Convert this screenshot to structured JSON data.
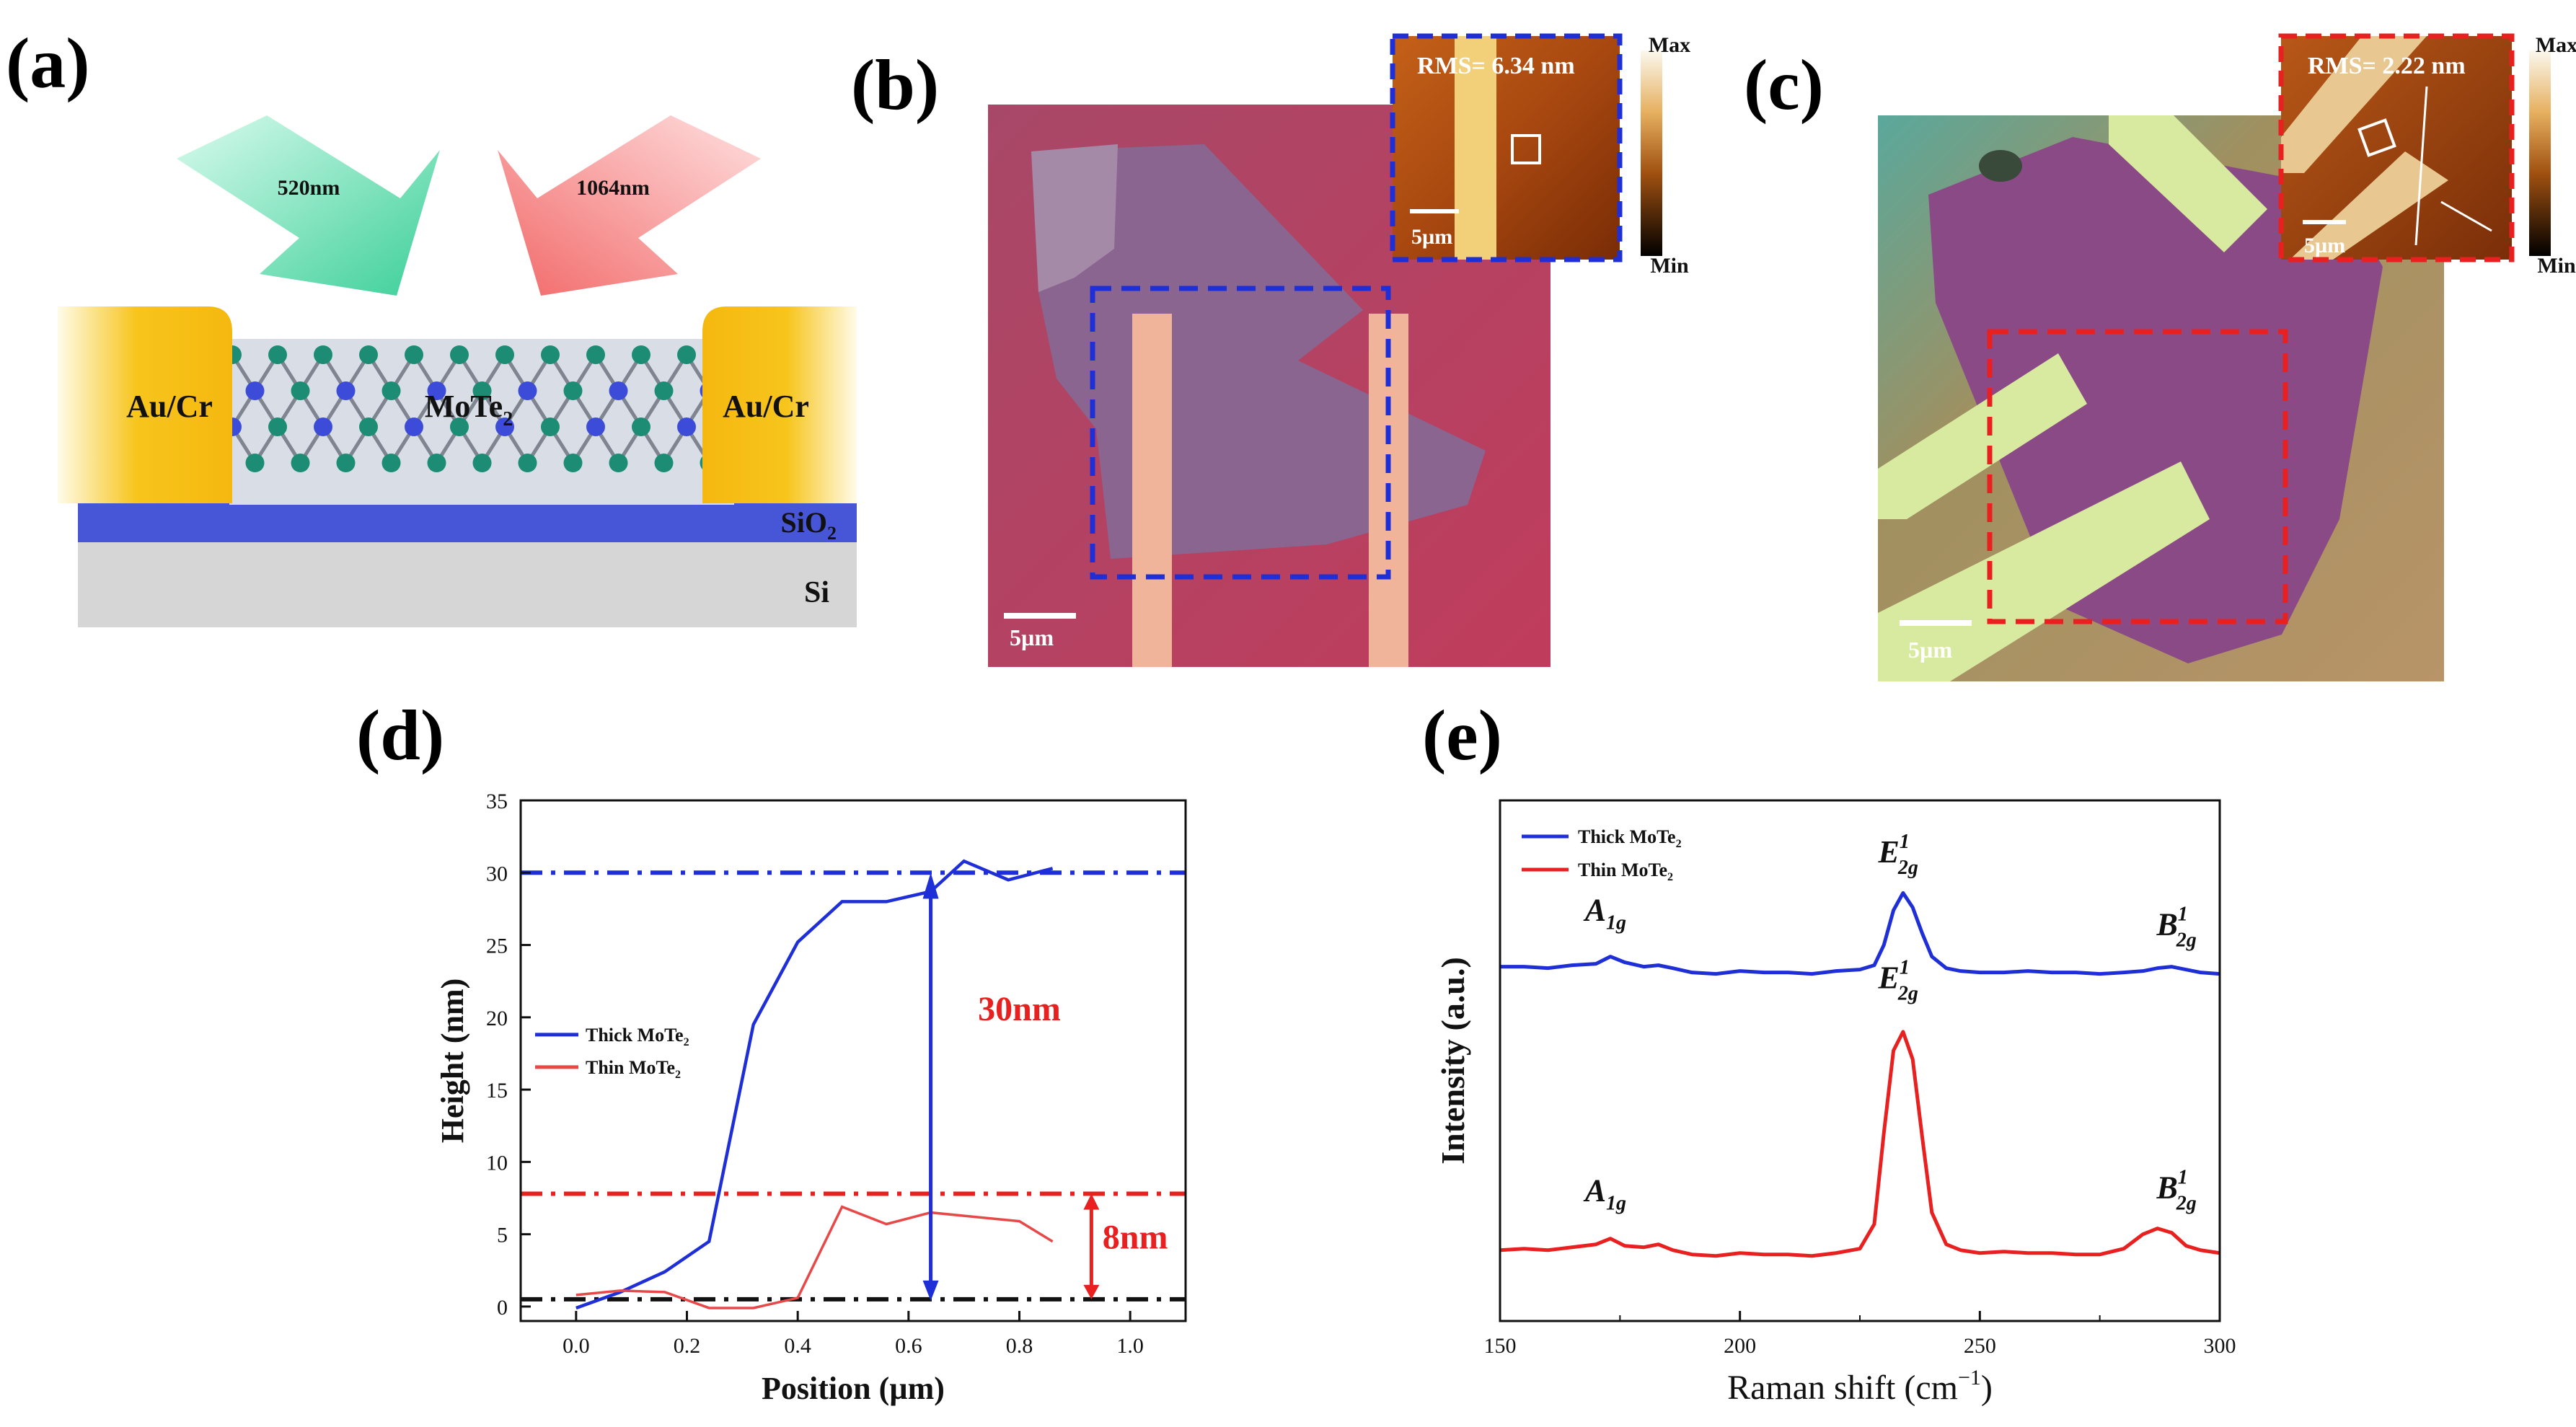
{
  "figure": {
    "labels": {
      "a": "(a)",
      "b": "(b)",
      "c": "(c)",
      "d": "(d)",
      "e": "(e)"
    }
  },
  "panel_a": {
    "arrow_green": "520nm",
    "arrow_red": "1064nm",
    "contact_left": "Au/Cr",
    "contact_right": "Au/Cr",
    "material": "MoTe",
    "material_sub": "2",
    "oxide": "SiO",
    "oxide_sub": "2",
    "substrate": "Si",
    "colors": {
      "gold": "#f5bc14",
      "silicon_oxide": "#4a5bd8",
      "silicon": "#d4d4d4",
      "te_atom": "#1c8c74",
      "mo_atom": "#3c4cd8",
      "arrow_green": "#4fd6a8",
      "arrow_red": "#f47878"
    }
  },
  "panel_b": {
    "rms": "RMS= 6.34 nm",
    "inset_scale": "5µm",
    "scale": "5µm",
    "colorbar_max": "Max",
    "colorbar_min": "Min",
    "colors": {
      "box": "#1f2fd8"
    }
  },
  "panel_c": {
    "rms": "RMS= 2.22 nm",
    "inset_scale": "5µm",
    "scale": "5µm",
    "colorbar_max": "Max",
    "colorbar_min": "Min",
    "colors": {
      "box": "#e82020"
    }
  },
  "chart_data": [
    {
      "id": "d",
      "type": "line",
      "xlabel": "Position (µm)",
      "ylabel": "Height (nm)",
      "xlim": [
        -0.1,
        1.1
      ],
      "ylim": [
        -1,
        35
      ],
      "xticks": [
        "0.0",
        "0.2",
        "0.4",
        "0.6",
        "0.8",
        "1.0"
      ],
      "yticks": [
        "0",
        "5",
        "10",
        "15",
        "20",
        "25",
        "30",
        "35"
      ],
      "legend": [
        "Thick MoTe",
        "Thin MoTe"
      ],
      "legend_sub": "2",
      "series": [
        {
          "name": "Thick MoTe2",
          "color": "#1f2fd8",
          "x": [
            0.0,
            0.08,
            0.16,
            0.24,
            0.32,
            0.4,
            0.48,
            0.56,
            0.64,
            0.7,
            0.78,
            0.86
          ],
          "y": [
            -0.1,
            1.0,
            2.4,
            4.5,
            19.5,
            25.2,
            28.0,
            28.0,
            28.7,
            30.8,
            29.5,
            30.3
          ]
        },
        {
          "name": "Thin MoTe2",
          "color": "#e84848",
          "x": [
            0.0,
            0.08,
            0.16,
            0.24,
            0.32,
            0.4,
            0.48,
            0.56,
            0.64,
            0.72,
            0.8,
            0.86
          ],
          "y": [
            0.8,
            1.1,
            1.0,
            -0.1,
            -0.1,
            0.6,
            6.9,
            5.7,
            6.5,
            6.2,
            5.9,
            4.5
          ]
        }
      ],
      "reference_lines": [
        {
          "y": 30,
          "color": "#1f2fd8"
        },
        {
          "y": 7.8,
          "color": "#e82020"
        },
        {
          "y": 0.5,
          "color": "#111111"
        }
      ],
      "annotations": [
        {
          "text": "30nm",
          "color": "#e82020"
        },
        {
          "text": "8nm",
          "color": "#e82020"
        }
      ]
    },
    {
      "id": "e",
      "type": "line",
      "xlabel": "Raman shift (cm",
      "xlabel_sup": "−1",
      "ylabel": "Intensity (a.u.)",
      "xlim": [
        150,
        300
      ],
      "xticks": [
        "150",
        "200",
        "250",
        "300"
      ],
      "legend": [
        "Thick MoTe",
        "Thin MoTe"
      ],
      "legend_sub": "2",
      "series": [
        {
          "name": "Thick MoTe2",
          "color": "#1f2fd8",
          "x": [
            150,
            155,
            160,
            165,
            170,
            173,
            176,
            180,
            183,
            186,
            190,
            195,
            200,
            205,
            210,
            215,
            220,
            225,
            228,
            230,
            232,
            234,
            236,
            238,
            240,
            243,
            246,
            250,
            255,
            260,
            265,
            270,
            275,
            280,
            284,
            287,
            290,
            293,
            296,
            300
          ],
          "y": [
            0.05,
            0.05,
            0.04,
            0.06,
            0.07,
            0.12,
            0.08,
            0.05,
            0.06,
            0.04,
            0.01,
            0.0,
            0.02,
            0.01,
            0.01,
            0.0,
            0.02,
            0.03,
            0.06,
            0.2,
            0.44,
            0.56,
            0.46,
            0.28,
            0.12,
            0.04,
            0.02,
            0.01,
            0.01,
            0.02,
            0.01,
            0.01,
            0.0,
            0.01,
            0.02,
            0.04,
            0.05,
            0.03,
            0.01,
            0.0
          ]
        },
        {
          "name": "Thin MoTe2",
          "color": "#e82020",
          "x": [
            150,
            155,
            160,
            165,
            170,
            173,
            176,
            180,
            183,
            186,
            190,
            195,
            200,
            205,
            210,
            215,
            220,
            225,
            228,
            230,
            232,
            234,
            236,
            238,
            240,
            243,
            246,
            250,
            255,
            260,
            265,
            270,
            275,
            280,
            284,
            287,
            290,
            293,
            296,
            300
          ],
          "y": [
            0.04,
            0.05,
            0.04,
            0.06,
            0.08,
            0.12,
            0.07,
            0.06,
            0.08,
            0.04,
            0.01,
            0.0,
            0.02,
            0.01,
            0.01,
            0.0,
            0.02,
            0.05,
            0.22,
            0.85,
            1.42,
            1.55,
            1.36,
            0.82,
            0.3,
            0.08,
            0.04,
            0.02,
            0.03,
            0.02,
            0.02,
            0.01,
            0.01,
            0.05,
            0.15,
            0.19,
            0.16,
            0.07,
            0.04,
            0.02
          ]
        }
      ],
      "offsets": [
        1.95,
        0.0
      ],
      "peak_labels": [
        {
          "base": "A",
          "sub": "1g",
          "sup": ""
        },
        {
          "base": "E",
          "sub": "2g",
          "sup": "1"
        },
        {
          "base": "B",
          "sub": "2g",
          "sup": "1"
        },
        {
          "base": "A",
          "sub": "1g",
          "sup": ""
        },
        {
          "base": "E",
          "sub": "2g",
          "sup": "1"
        },
        {
          "base": "B",
          "sub": "2g",
          "sup": "1"
        }
      ]
    }
  ]
}
